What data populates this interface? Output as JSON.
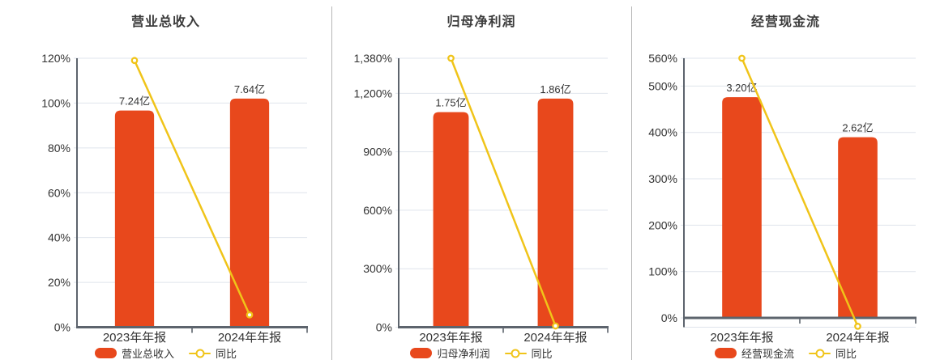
{
  "colors": {
    "bar": "#e8481c",
    "line": "#f0c419",
    "axis": "#5d646d",
    "grid": "#dfe4ec",
    "text": "#333333",
    "title": "#3b3b3b",
    "divider": "#b5b5b5",
    "background": "#ffffff"
  },
  "chart_data": [
    {
      "type": "bar+line",
      "title": "营业总收入",
      "categories": [
        "2023年年报",
        "2024年年报"
      ],
      "bar_series": {
        "name": "营业总收入",
        "unit": "亿",
        "values": [
          7.24,
          7.64
        ],
        "labels": [
          "7.24亿",
          "7.64亿"
        ]
      },
      "line_series": {
        "name": "同比",
        "values_pct": [
          119,
          5.5
        ]
      },
      "ylim": [
        0,
        120
      ],
      "y_ticks": [
        0,
        20,
        40,
        60,
        80,
        100,
        120
      ],
      "y_tick_labels": [
        "0%",
        "20%",
        "40%",
        "60%",
        "80%",
        "100%",
        "120%"
      ],
      "grid": true,
      "legend_position": "bottom",
      "legend": [
        "营业总收入",
        "同比"
      ]
    },
    {
      "type": "bar+line",
      "title": "归母净利润",
      "categories": [
        "2023年年报",
        "2024年年报"
      ],
      "bar_series": {
        "name": "归母净利润",
        "unit": "亿",
        "values": [
          1.75,
          1.86
        ],
        "labels": [
          "1.75亿",
          "1.86亿"
        ]
      },
      "line_series": {
        "name": "同比",
        "values_pct": [
          1380,
          6.3
        ]
      },
      "ylim": [
        0,
        1380
      ],
      "y_ticks": [
        0,
        300,
        600,
        900,
        1200,
        1380
      ],
      "y_tick_labels": [
        "0%",
        "300%",
        "600%",
        "900%",
        "1,200%",
        "1,380%"
      ],
      "grid": true,
      "legend_position": "bottom",
      "legend": [
        "归母净利润",
        "同比"
      ]
    },
    {
      "type": "bar+line",
      "title": "经营现金流",
      "categories": [
        "2023年年报",
        "2024年年报"
      ],
      "bar_series": {
        "name": "经营现金流",
        "unit": "亿",
        "values": [
          3.2,
          2.62
        ],
        "labels": [
          "3.20亿",
          "2.62亿"
        ]
      },
      "line_series": {
        "name": "同比",
        "values_pct": [
          560,
          -18.1
        ]
      },
      "ylim": [
        -20,
        560
      ],
      "y_ticks": [
        0,
        100,
        200,
        300,
        400,
        500,
        560
      ],
      "y_tick_labels": [
        "0%",
        "100%",
        "200%",
        "300%",
        "400%",
        "500%",
        "560%"
      ],
      "grid": true,
      "legend_position": "bottom",
      "legend": [
        "经营现金流",
        "同比"
      ]
    }
  ]
}
